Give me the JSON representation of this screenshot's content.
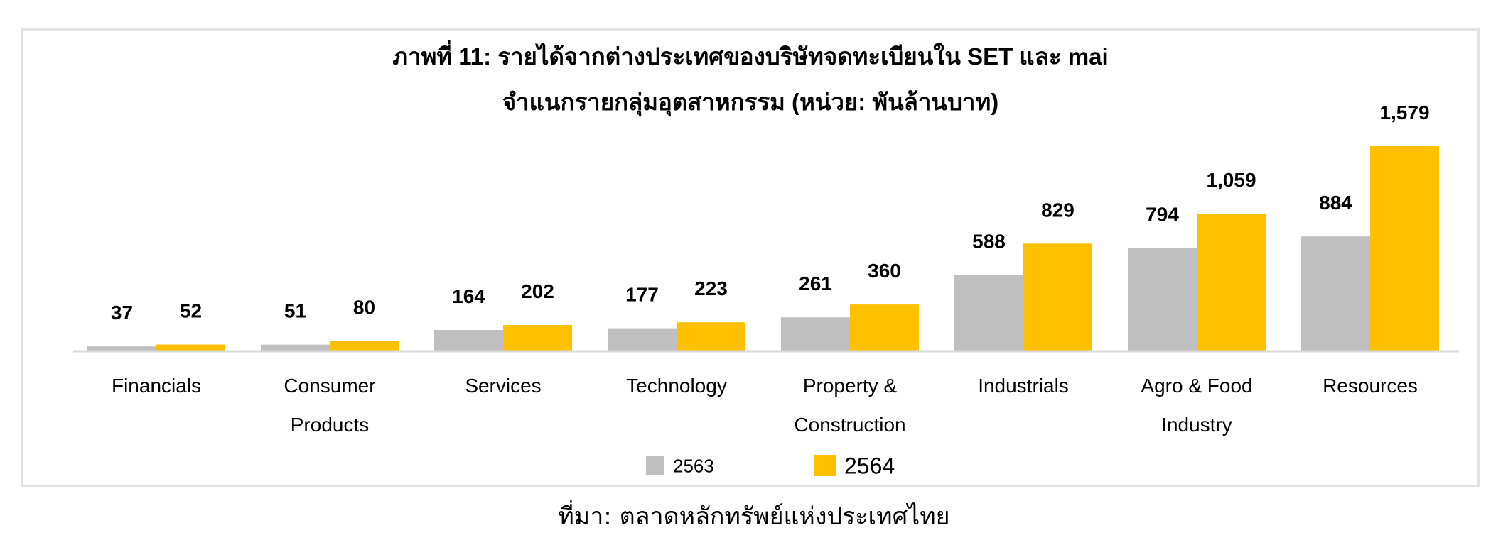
{
  "chart_data": {
    "type": "bar",
    "title": "ภาพที่ 11: รายได้จากต่างประเทศของบริษัทจดทะเบียนใน SET และ mai",
    "subtitle": "จำแนกรายกลุ่มอุตสาหกรรม (หน่วย: พันล้านบาท)",
    "categories": [
      [
        "Financials"
      ],
      [
        "Consumer",
        "Products"
      ],
      [
        "Services"
      ],
      [
        "Technology"
      ],
      [
        "Property &",
        "Construction"
      ],
      [
        "Industrials"
      ],
      [
        "Agro & Food",
        "Industry"
      ],
      [
        "Resources"
      ]
    ],
    "series": [
      {
        "name": "2563",
        "color": "#bfbfbf",
        "values": [
          37,
          51,
          164,
          177,
          261,
          588,
          794,
          884
        ],
        "labels": [
          "37",
          "51",
          "164",
          "177",
          "261",
          "588",
          "794",
          "884"
        ]
      },
      {
        "name": "2564",
        "color": "#ffc000",
        "values": [
          52,
          80,
          202,
          223,
          360,
          829,
          1059,
          1579
        ],
        "labels": [
          "52",
          "80",
          "202",
          "223",
          "360",
          "829",
          "1,059",
          "1,579"
        ]
      }
    ],
    "ylim": [
      0,
      1620
    ],
    "grid": false,
    "legend": "bottom-center",
    "axis_color": "#d9d9d9"
  },
  "source_note": "ที่มา: ตลาดหลักทรัพย์แห่งประเทศไทย"
}
